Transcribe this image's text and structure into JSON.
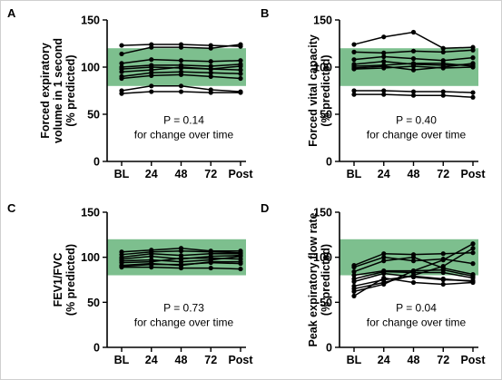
{
  "figure": {
    "colors": {
      "band": "#7dbf8e",
      "line": "#000000",
      "axis": "#000000"
    }
  },
  "chart_data": [
    {
      "panel_letter": "A",
      "type": "line",
      "categories": [
        "BL",
        "24",
        "48",
        "72",
        "Post"
      ],
      "ylabel": [
        "Forced expiratory",
        "volume in 1 second",
        "(% predicted)"
      ],
      "ylim": [
        0,
        150
      ],
      "yticks": [
        "0",
        "50",
        "100",
        "150"
      ],
      "normal_band": [
        80,
        120
      ],
      "annotation": [
        "P = 0.14",
        "for change over time"
      ],
      "series": [
        {
          "values": [
            123,
            124,
            124,
            123,
            122
          ]
        },
        {
          "values": [
            114,
            121,
            121,
            120,
            124
          ]
        },
        {
          "values": [
            104,
            108,
            107,
            106,
            107
          ]
        },
        {
          "values": [
            100,
            102,
            102,
            101,
            103
          ]
        },
        {
          "values": [
            98,
            100,
            99,
            98,
            97
          ]
        },
        {
          "values": [
            95,
            97,
            100,
            98,
            101
          ]
        },
        {
          "values": [
            90,
            94,
            95,
            94,
            93
          ]
        },
        {
          "values": [
            88,
            91,
            92,
            90,
            88
          ]
        },
        {
          "values": [
            75,
            80,
            80,
            76,
            74
          ]
        },
        {
          "values": [
            72,
            74,
            74,
            73,
            73
          ]
        }
      ]
    },
    {
      "panel_letter": "B",
      "type": "line",
      "categories": [
        "BL",
        "24",
        "48",
        "72",
        "Post"
      ],
      "ylabel": [
        "Forced vital capacity",
        "(% predicted)"
      ],
      "ylim": [
        0,
        150
      ],
      "yticks": [
        "0",
        "50",
        "100",
        "150"
      ],
      "normal_band": [
        80,
        120
      ],
      "annotation": [
        "P = 0.40",
        "for change over time"
      ],
      "series": [
        {
          "values": [
            124,
            132,
            137,
            120,
            121
          ]
        },
        {
          "values": [
            116,
            115,
            117,
            116,
            118
          ]
        },
        {
          "values": [
            108,
            111,
            109,
            107,
            110
          ]
        },
        {
          "values": [
            103,
            106,
            103,
            102,
            103
          ]
        },
        {
          "values": [
            101,
            102,
            104,
            104,
            101
          ]
        },
        {
          "values": [
            99,
            101,
            97,
            100,
            104
          ]
        },
        {
          "values": [
            98,
            99,
            101,
            99,
            100
          ]
        },
        {
          "values": [
            75,
            75,
            74,
            74,
            73
          ]
        },
        {
          "values": [
            71,
            71,
            70,
            70,
            68
          ]
        }
      ]
    },
    {
      "panel_letter": "C",
      "type": "line",
      "categories": [
        "BL",
        "24",
        "48",
        "72",
        "Post"
      ],
      "ylabel": [
        "FEV1/FVC",
        "(% predicted)"
      ],
      "ylim": [
        0,
        150
      ],
      "yticks": [
        "0",
        "50",
        "100",
        "150"
      ],
      "normal_band": [
        80,
        120
      ],
      "annotation": [
        "P = 0.73",
        "for change over time"
      ],
      "series": [
        {
          "values": [
            106,
            108,
            110,
            107,
            107
          ]
        },
        {
          "values": [
            103,
            106,
            107,
            106,
            105
          ]
        },
        {
          "values": [
            100,
            104,
            102,
            104,
            104
          ]
        },
        {
          "values": [
            98,
            101,
            98,
            101,
            102
          ]
        },
        {
          "values": [
            96,
            97,
            95,
            97,
            101
          ]
        },
        {
          "values": [
            94,
            95,
            99,
            99,
            98
          ]
        },
        {
          "values": [
            91,
            93,
            91,
            95,
            95
          ]
        },
        {
          "values": [
            90,
            92,
            92,
            94,
            93
          ]
        },
        {
          "values": [
            89,
            89,
            88,
            88,
            87
          ]
        }
      ]
    },
    {
      "panel_letter": "D",
      "type": "line",
      "categories": [
        "BL",
        "24",
        "48",
        "72",
        "Post"
      ],
      "ylabel": [
        "Peak expiratory flow rate",
        "(% predicted)"
      ],
      "ylim": [
        0,
        150
      ],
      "yticks": [
        "0",
        "50",
        "100",
        "150"
      ],
      "normal_band": [
        80,
        120
      ],
      "annotation": [
        "P = 0.04",
        "for change over time"
      ],
      "series": [
        {
          "values": [
            91,
            104,
            103,
            104,
            105
          ]
        },
        {
          "values": [
            89,
            100,
            96,
            98,
            93
          ]
        },
        {
          "values": [
            84,
            96,
            100,
            88,
            81
          ]
        },
        {
          "values": [
            80,
            85,
            85,
            86,
            79
          ]
        },
        {
          "values": [
            76,
            84,
            83,
            83,
            77
          ]
        },
        {
          "values": [
            73,
            82,
            78,
            75,
            74
          ]
        },
        {
          "values": [
            68,
            75,
            79,
            76,
            73
          ]
        },
        {
          "values": [
            65,
            72,
            80,
            90,
            110
          ]
        },
        {
          "values": [
            62,
            70,
            85,
            97,
            115
          ]
        },
        {
          "values": [
            57,
            77,
            72,
            70,
            72
          ]
        }
      ]
    }
  ]
}
